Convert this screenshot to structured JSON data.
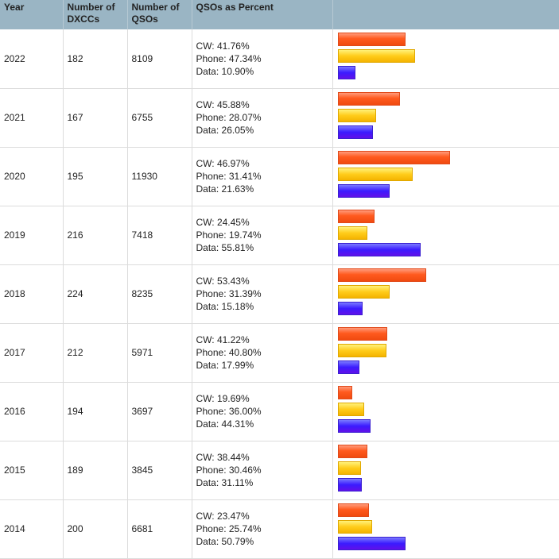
{
  "header": {
    "year": "Year",
    "dxccs": "Number of DXCCs",
    "qsos": "Number of QSOs",
    "percent": "QSOs as Percent",
    "blank": ""
  },
  "labels": {
    "cw": "CW: ",
    "phone": "Phone: ",
    "data": "Data: "
  },
  "colors": {
    "cw": "#ff5a1e",
    "phone": "#ffcc1a",
    "data": "#3b1bff",
    "header_bg": "#9ab5c4"
  },
  "chart_data": {
    "type": "table",
    "columns": [
      "Year",
      "Number of DXCCs",
      "Number of QSOs",
      "QSOs as Percent"
    ],
    "series_names": [
      "CW",
      "Phone",
      "Data"
    ],
    "rows": [
      {
        "year": "2022",
        "dxccs": "182",
        "qsos": "8109",
        "cw": "41.76%",
        "phone": "47.34%",
        "data": "10.90%"
      },
      {
        "year": "2021",
        "dxccs": "167",
        "qsos": "6755",
        "cw": "45.88%",
        "phone": "28.07%",
        "data": "26.05%"
      },
      {
        "year": "2020",
        "dxccs": "195",
        "qsos": "11930",
        "cw": "46.97%",
        "phone": "31.41%",
        "data": "21.63%"
      },
      {
        "year": "2019",
        "dxccs": "216",
        "qsos": "7418",
        "cw": "24.45%",
        "phone": "19.74%",
        "data": "55.81%"
      },
      {
        "year": "2018",
        "dxccs": "224",
        "qsos": "8235",
        "cw": "53.43%",
        "phone": "31.39%",
        "data": "15.18%"
      },
      {
        "year": "2017",
        "dxccs": "212",
        "qsos": "5971",
        "cw": "41.22%",
        "phone": "40.80%",
        "data": "17.99%"
      },
      {
        "year": "2016",
        "dxccs": "194",
        "qsos": "3697",
        "cw": "19.69%",
        "phone": "36.00%",
        "data": "44.31%"
      },
      {
        "year": "2015",
        "dxccs": "189",
        "qsos": "3845",
        "cw": "38.44%",
        "phone": "30.46%",
        "data": "31.11%"
      },
      {
        "year": "2014",
        "dxccs": "200",
        "qsos": "6681",
        "cw": "23.47%",
        "phone": "25.74%",
        "data": "50.79%"
      }
    ],
    "bar_values": {
      "note_units": "QSOs per mode",
      "rows": [
        {
          "year": "2022",
          "cw": 3386,
          "phone": 3839,
          "data": 884
        },
        {
          "year": "2021",
          "cw": 3099,
          "phone": 1896,
          "data": 1760
        },
        {
          "year": "2020",
          "cw": 5604,
          "phone": 3747,
          "data": 2580
        },
        {
          "year": "2019",
          "cw": 1814,
          "phone": 1464,
          "data": 4140
        },
        {
          "year": "2018",
          "cw": 4400,
          "phone": 2585,
          "data": 1250
        },
        {
          "year": "2017",
          "cw": 2461,
          "phone": 2436,
          "data": 1074
        },
        {
          "year": "2016",
          "cw": 728,
          "phone": 1331,
          "data": 1638
        },
        {
          "year": "2015",
          "cw": 1478,
          "phone": 1171,
          "data": 1196
        },
        {
          "year": "2014",
          "cw": 1568,
          "phone": 1720,
          "data": 3393
        }
      ],
      "max": 5604
    }
  }
}
